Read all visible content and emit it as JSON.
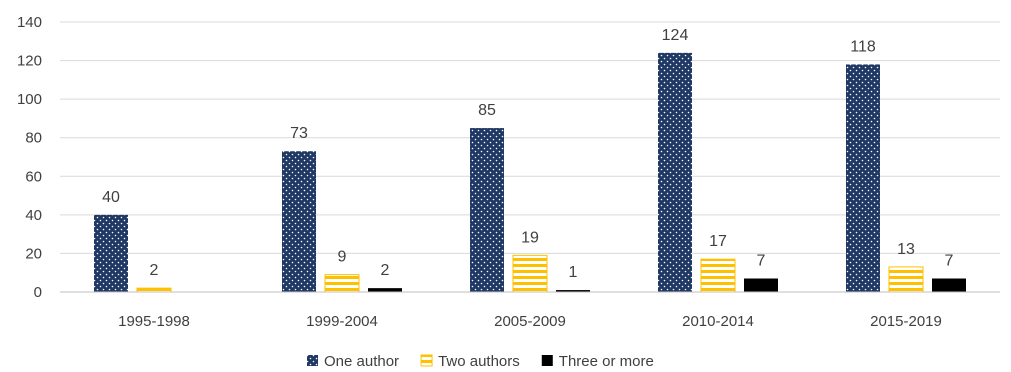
{
  "chart_data": {
    "type": "bar",
    "categories": [
      "1995-1998",
      "1999-2004",
      "2005-2009",
      "2010-2014",
      "2015-2019"
    ],
    "series": [
      {
        "name": "One author",
        "values": [
          40,
          73,
          85,
          124,
          118
        ],
        "color": "#1f3864",
        "pattern": "dots"
      },
      {
        "name": "Two authors",
        "values": [
          2,
          9,
          19,
          17,
          13
        ],
        "color": "#ffc000",
        "pattern": "horizontal-stripes"
      },
      {
        "name": "Three or more",
        "values": [
          null,
          2,
          1,
          7,
          7
        ],
        "color": "#000000",
        "pattern": "solid"
      }
    ],
    "data_labels": [
      [
        "40",
        "73",
        "85",
        "124",
        "118"
      ],
      [
        "2",
        "9",
        "19",
        "17",
        "13"
      ],
      [
        "",
        "2",
        "1",
        "7",
        "7"
      ]
    ],
    "yticks": [
      "0",
      "20",
      "40",
      "60",
      "80",
      "100",
      "120",
      "140"
    ],
    "ylim": [
      0,
      140
    ],
    "grid": true,
    "legend_position": "bottom"
  }
}
